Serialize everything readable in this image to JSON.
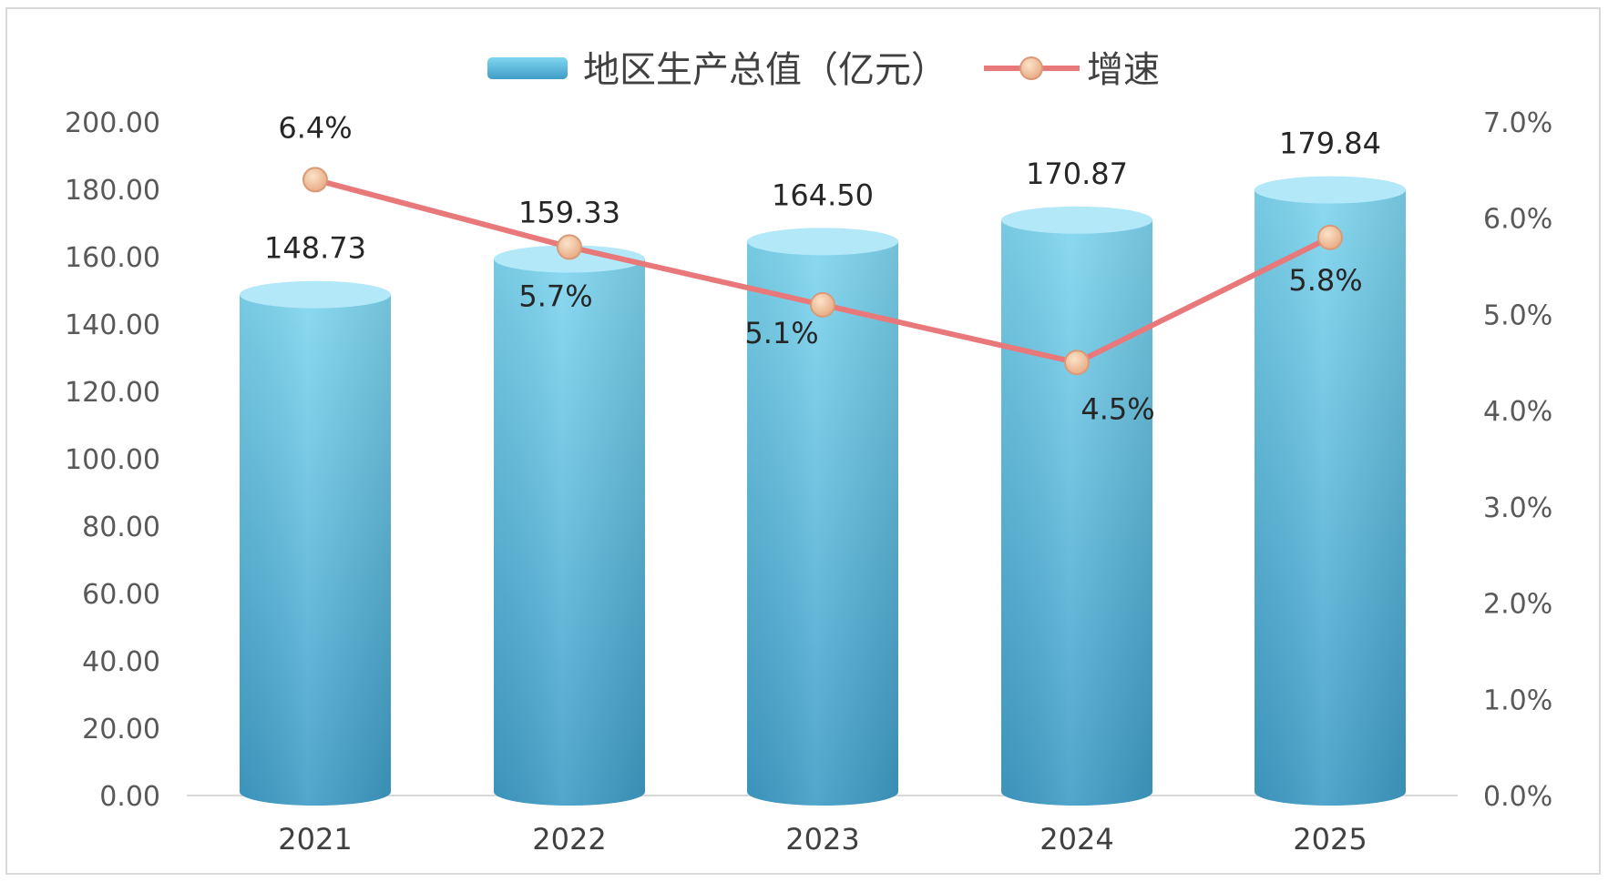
{
  "chart_data": {
    "type": "bar",
    "categories": [
      "2021",
      "2022",
      "2023",
      "2024",
      "2025"
    ],
    "series": [
      {
        "name": "地区生产总值（亿元）",
        "type": "bar",
        "axis": "left",
        "values": [
          148.73,
          159.33,
          164.5,
          170.87,
          179.84
        ],
        "labels": [
          "148.73",
          "159.33",
          "164.50",
          "170.87",
          "179.84"
        ]
      },
      {
        "name": "增速",
        "type": "line",
        "axis": "right",
        "values": [
          6.4,
          5.7,
          5.1,
          4.5,
          5.8
        ],
        "labels": [
          "6.4%",
          "5.7%",
          "5.1%",
          "4.5%",
          "5.8%"
        ]
      }
    ],
    "y_left": {
      "ylim": [
        0,
        200
      ],
      "ticks": [
        "0.00",
        "20.00",
        "40.00",
        "60.00",
        "80.00",
        "100.00",
        "120.00",
        "140.00",
        "160.00",
        "180.00",
        "200.00"
      ]
    },
    "y_right": {
      "ylim": [
        0,
        7
      ],
      "ticks": [
        "0.0%",
        "1.0%",
        "2.0%",
        "3.0%",
        "4.0%",
        "5.0%",
        "6.0%",
        "7.0%"
      ]
    },
    "legend": "top-center",
    "grid": false,
    "colors": {
      "bar_light": "#7fd6f0",
      "bar_dark": "#3f9cc6",
      "bar_top": "#b3e8f8",
      "line": "#e8787a",
      "marker": "#f2c29a",
      "marker_stroke": "#d99a78"
    }
  }
}
